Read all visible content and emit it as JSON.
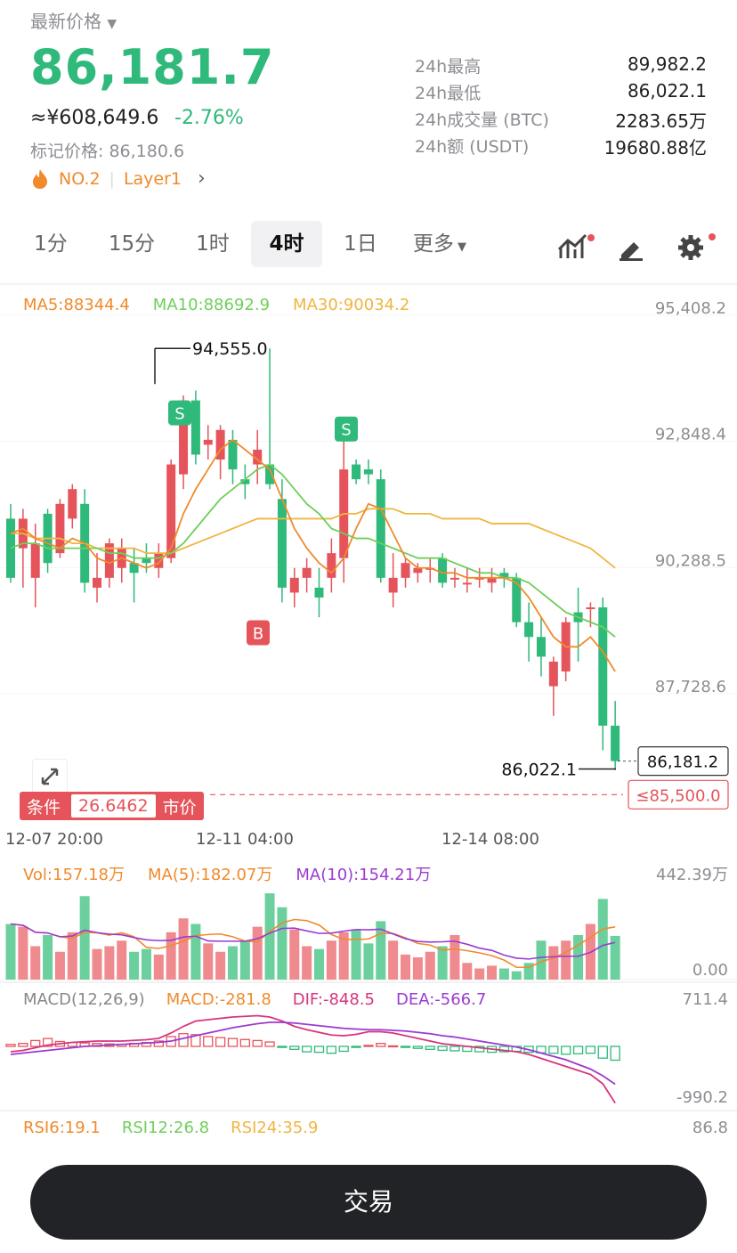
{
  "header": {
    "title": "最新价格",
    "price": "86,181.7",
    "cny": "≈¥608,649.6",
    "change": "-2.76%",
    "mark_price": "标记价格: 86,180.6",
    "rank": "NO.2",
    "category": "Layer1"
  },
  "stats": [
    {
      "label": "24h最高",
      "value": "89,982.2"
    },
    {
      "label": "24h最低",
      "value": "86,022.1"
    },
    {
      "label": "24h成交量 (BTC)",
      "value": "2283.65万"
    },
    {
      "label": "24h额 (USDT)",
      "value": "19680.88亿"
    }
  ],
  "tabs": [
    "1分",
    "15分",
    "1时",
    "4时",
    "1日",
    "更多"
  ],
  "active_tab": "4时",
  "main_chart": {
    "ma5": "MA5:88344.4",
    "ma10": "MA10:88692.9",
    "ma30": "MA30:90034.2",
    "y_ticks": [
      "95,408.2",
      "92,848.4",
      "90,288.5",
      "87,728.6"
    ],
    "high_label": "94,555.0",
    "low_label": "86,022.1",
    "current_price": "86,181.2",
    "trigger_price": "≤85,500.0",
    "x_ticks": [
      "12-07 20:00",
      "12-11 04:00",
      "12-14 08:00"
    ],
    "markers": [
      "S",
      "S",
      "B"
    ]
  },
  "condition": {
    "label": "条件",
    "value": "26.6462",
    "type": "市价"
  },
  "volume": {
    "vol": "Vol:157.18万",
    "ma5": "MA(5):182.07万",
    "ma10": "MA(10):154.21万",
    "y_top": "442.39万",
    "y_bottom": "0.00"
  },
  "macd": {
    "title": "MACD(12,26,9)",
    "macd": "MACD:-281.8",
    "dif": "DIF:-848.5",
    "dea": "DEA:-566.7",
    "y_top": "711.4",
    "y_bottom": "-990.2"
  },
  "rsi": {
    "rsi6": "RSI6:19.1",
    "rsi12": "RSI12:26.8",
    "rsi24": "RSI24:35.9",
    "y_top": "86.8"
  },
  "trade_button": "交易",
  "colors": {
    "up": "#e5545b",
    "down": "#2fb97a",
    "ma5": "#f08a2b",
    "ma10": "#6fcf5a",
    "ma30": "#f0b540",
    "dif": "#d8357d",
    "dea": "#9b3bd0"
  },
  "chart_data": {
    "type": "candlestick",
    "y_axis": {
      "min": 85500,
      "max": 95408.2
    },
    "candles": [
      [
        91100,
        91400,
        89800,
        89900
      ],
      [
        90500,
        91300,
        89700,
        91100
      ],
      [
        89900,
        91000,
        89300,
        90600
      ],
      [
        91200,
        91300,
        90000,
        90200
      ],
      [
        90400,
        91500,
        90300,
        91400
      ],
      [
        91100,
        91800,
        90900,
        91700
      ],
      [
        91400,
        91700,
        89600,
        89800
      ],
      [
        89700,
        90400,
        89400,
        89900
      ],
      [
        89900,
        90700,
        89700,
        90600
      ],
      [
        90100,
        90700,
        89800,
        90500
      ],
      [
        90200,
        90500,
        89400,
        90000
      ],
      [
        90300,
        90600,
        90000,
        90200
      ],
      [
        90100,
        90600,
        89900,
        90400
      ],
      [
        90300,
        92300,
        90200,
        92200
      ],
      [
        92000,
        93600,
        91700,
        93500
      ],
      [
        93500,
        93700,
        92200,
        92400
      ],
      [
        92600,
        93000,
        92300,
        92700
      ],
      [
        92300,
        93000,
        91900,
        92900
      ],
      [
        92700,
        92900,
        91800,
        92100
      ],
      [
        91900,
        92200,
        91500,
        91800
      ],
      [
        92200,
        92900,
        91800,
        92500
      ],
      [
        92200,
        94555,
        91700,
        91800
      ],
      [
        91500,
        91900,
        89400,
        89700
      ],
      [
        89600,
        90100,
        89300,
        89900
      ],
      [
        89900,
        90300,
        89600,
        90100
      ],
      [
        89700,
        90100,
        89100,
        89500
      ],
      [
        89900,
        90700,
        89600,
        90400
      ],
      [
        90300,
        93100,
        89800,
        92100
      ],
      [
        92200,
        92300,
        91800,
        91900
      ],
      [
        92100,
        92300,
        91800,
        92000
      ],
      [
        91900,
        92100,
        89800,
        89900
      ],
      [
        89600,
        90400,
        89300,
        89900
      ],
      [
        89900,
        90300,
        89700,
        90200
      ],
      [
        90000,
        90200,
        89800,
        90100
      ],
      [
        90100,
        90300,
        89800,
        90100
      ],
      [
        90300,
        90400,
        89700,
        89800
      ],
      [
        89900,
        90100,
        89700,
        89900
      ],
      [
        89800,
        90100,
        89600,
        89800
      ],
      [
        89900,
        90100,
        89700,
        89900
      ],
      [
        89800,
        90100,
        89600,
        89900
      ],
      [
        90000,
        90100,
        89700,
        89900
      ],
      [
        89900,
        90000,
        88900,
        89000
      ],
      [
        89000,
        89400,
        88200,
        88700
      ],
      [
        88700,
        89100,
        87900,
        88300
      ],
      [
        87700,
        88300,
        87100,
        88200
      ],
      [
        88000,
        89100,
        87800,
        89000
      ],
      [
        89200,
        89700,
        88200,
        89000
      ],
      [
        89300,
        89400,
        88900,
        89300
      ],
      [
        89300,
        89500,
        86400,
        86900
      ],
      [
        86900,
        87400,
        86000,
        86181.2
      ]
    ],
    "ma5": [
      90800,
      90900,
      90700,
      90600,
      90500,
      90700,
      90600,
      90300,
      90200,
      90300,
      90200,
      90100,
      90200,
      90500,
      91200,
      91700,
      92100,
      92500,
      92700,
      92500,
      92300,
      92100,
      91500,
      90900,
      90500,
      90200,
      90000,
      90300,
      90900,
      91400,
      91300,
      90800,
      90300,
      90100,
      90100,
      90000,
      90000,
      89900,
      89900,
      89900,
      89900,
      89800,
      89500,
      89100,
      88700,
      88500,
      88500,
      88700,
      88400,
      88000
    ],
    "ma10": [
      90500,
      90600,
      90600,
      90500,
      90500,
      90500,
      90500,
      90500,
      90400,
      90400,
      90300,
      90300,
      90300,
      90400,
      90600,
      90900,
      91200,
      91500,
      91700,
      91900,
      92100,
      92200,
      92000,
      91700,
      91400,
      91200,
      90900,
      90800,
      90700,
      90700,
      90600,
      90500,
      90400,
      90300,
      90300,
      90300,
      90200,
      90100,
      90000,
      90000,
      89900,
      89900,
      89800,
      89600,
      89400,
      89200,
      89100,
      89000,
      88900,
      88700
    ],
    "ma30": [
      90800,
      90800,
      90700,
      90700,
      90700,
      90600,
      90600,
      90500,
      90500,
      90500,
      90500,
      90400,
      90400,
      90400,
      90500,
      90600,
      90700,
      90800,
      90900,
      91000,
      91100,
      91100,
      91100,
      91100,
      91100,
      91100,
      91100,
      91200,
      91200,
      91300,
      91300,
      91300,
      91200,
      91200,
      91200,
      91100,
      91100,
      91100,
      91100,
      91000,
      91000,
      91000,
      91000,
      90900,
      90800,
      90700,
      90600,
      90500,
      90300,
      90100
    ],
    "volume": [
      200,
      190,
      120,
      160,
      100,
      170,
      300,
      110,
      120,
      140,
      100,
      110,
      90,
      170,
      220,
      200,
      130,
      100,
      120,
      140,
      190,
      310,
      260,
      180,
      120,
      110,
      140,
      170,
      180,
      130,
      210,
      140,
      90,
      80,
      100,
      120,
      160,
      60,
      40,
      50,
      40,
      30,
      60,
      140,
      120,
      140,
      160,
      200,
      290,
      157
    ],
    "macd_hist": [
      40,
      60,
      120,
      160,
      100,
      80,
      70,
      60,
      50,
      40,
      60,
      80,
      110,
      200,
      260,
      240,
      200,
      180,
      160,
      140,
      120,
      90,
      -20,
      -60,
      -110,
      -120,
      -140,
      -100,
      -20,
      20,
      60,
      10,
      -20,
      -40,
      -60,
      -80,
      -90,
      -100,
      -110,
      -120,
      -110,
      -100,
      -120,
      -130,
      -140,
      -160,
      -150,
      -140,
      -240,
      -282
    ],
    "dif": [
      -80,
      -60,
      -20,
      20,
      40,
      60,
      70,
      80,
      80,
      80,
      90,
      100,
      120,
      200,
      300,
      380,
      400,
      420,
      440,
      450,
      460,
      440,
      380,
      300,
      250,
      210,
      170,
      160,
      180,
      220,
      220,
      200,
      160,
      120,
      80,
      40,
      20,
      0,
      -20,
      -40,
      -60,
      -80,
      -120,
      -180,
      -240,
      -300,
      -360,
      -420,
      -560,
      -848.5
    ],
    "dea": [
      -120,
      -100,
      -80,
      -60,
      -40,
      -20,
      0,
      10,
      20,
      30,
      40,
      50,
      60,
      80,
      120,
      160,
      200,
      240,
      280,
      310,
      340,
      360,
      360,
      350,
      330,
      310,
      290,
      270,
      260,
      250,
      250,
      240,
      230,
      210,
      190,
      160,
      140,
      110,
      80,
      50,
      20,
      -10,
      -50,
      -100,
      -150,
      -200,
      -270,
      -340,
      -440,
      -566.7
    ]
  }
}
